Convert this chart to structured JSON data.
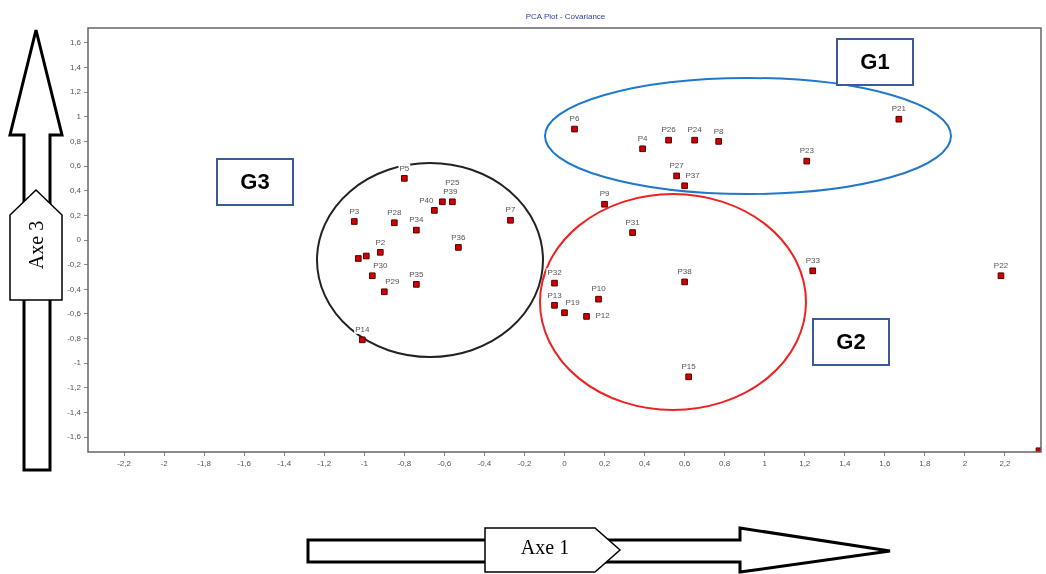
{
  "chart_data": {
    "type": "scatter",
    "title": "PCA Plot - Covariance",
    "xlabel": "Axe 1",
    "ylabel": "Axe 3",
    "marker": "square",
    "grid": false,
    "legend": false,
    "xlim": [
      -2.38,
      2.38
    ],
    "ylim": [
      -1.72,
      1.72
    ],
    "xticks": [
      {
        "value": -2.2,
        "label": "-2,2"
      },
      {
        "value": -2,
        "label": "-2"
      },
      {
        "value": -1.8,
        "label": "-1,8"
      },
      {
        "value": -1.6,
        "label": "-1,6"
      },
      {
        "value": -1.4,
        "label": "-1,4"
      },
      {
        "value": -1.2,
        "label": "-1,2"
      },
      {
        "value": -1,
        "label": "-1"
      },
      {
        "value": -0.8,
        "label": "-0,8"
      },
      {
        "value": -0.6,
        "label": "-0,6"
      },
      {
        "value": -0.4,
        "label": "-0,4"
      },
      {
        "value": -0.2,
        "label": "-0,2"
      },
      {
        "value": 0,
        "label": "0"
      },
      {
        "value": 0.2,
        "label": "0,2"
      },
      {
        "value": 0.4,
        "label": "0,4"
      },
      {
        "value": 0.6,
        "label": "0,6"
      },
      {
        "value": 0.8,
        "label": "0,8"
      },
      {
        "value": 1,
        "label": "1"
      },
      {
        "value": 1.2,
        "label": "1,2"
      },
      {
        "value": 1.4,
        "label": "1,4"
      },
      {
        "value": 1.6,
        "label": "1,6"
      },
      {
        "value": 1.8,
        "label": "1,8"
      },
      {
        "value": 2,
        "label": "2"
      },
      {
        "value": 2.2,
        "label": "2,2"
      }
    ],
    "yticks": [
      {
        "value": -1.6,
        "label": "-1,6"
      },
      {
        "value": -1.4,
        "label": "-1,4"
      },
      {
        "value": -1.2,
        "label": "-1,2"
      },
      {
        "value": -1,
        "label": "-1"
      },
      {
        "value": -0.8,
        "label": "-0,8"
      },
      {
        "value": -0.6,
        "label": "-0,6"
      },
      {
        "value": -0.4,
        "label": "-0,4"
      },
      {
        "value": -0.2,
        "label": "-0,2"
      },
      {
        "value": 0,
        "label": "0"
      },
      {
        "value": 0.2,
        "label": "0,2"
      },
      {
        "value": 0.4,
        "label": "0,4"
      },
      {
        "value": 0.6,
        "label": "0,6"
      },
      {
        "value": 0.8,
        "label": "0,8"
      },
      {
        "value": 1,
        "label": "1"
      },
      {
        "value": 1.2,
        "label": "1,2"
      },
      {
        "value": 1.4,
        "label": "1,4"
      },
      {
        "value": 1.6,
        "label": "1,6"
      }
    ],
    "series": [
      {
        "color": "#d00000",
        "x": [
          0.05,
          0.39,
          0.52,
          0.65,
          0.77,
          1.21,
          1.67,
          0.56,
          0.6,
          0.2,
          0.34,
          0.6,
          1.24,
          2.18,
          -0.05,
          -0.05,
          0.0,
          0.11,
          0.17,
          0.62,
          -1.05,
          -0.8,
          -0.85,
          -0.74,
          -0.65,
          -0.61,
          -0.56,
          -0.27,
          -0.53,
          -0.92,
          -1.03,
          -0.99,
          -0.96,
          -0.9,
          -0.74,
          -1.01,
          2.37
        ],
        "values": [
          0.9,
          0.74,
          0.81,
          0.81,
          0.8,
          0.64,
          0.98,
          0.52,
          0.44,
          0.29,
          0.06,
          -0.34,
          -0.25,
          -0.29,
          -0.35,
          -0.53,
          -0.59,
          -0.62,
          -0.48,
          -1.11,
          0.15,
          0.5,
          0.14,
          0.08,
          0.24,
          0.31,
          0.31,
          0.16,
          -0.06,
          -0.1,
          -0.15,
          -0.13,
          -0.29,
          -0.42,
          -0.36,
          -0.81,
          -1.71
        ]
      }
    ],
    "annotations": [
      {
        "text": "P6",
        "x": 0.05,
        "y": 0.9
      },
      {
        "text": "P4",
        "x": 0.39,
        "y": 0.74
      },
      {
        "text": "P26",
        "x": 0.52,
        "y": 0.81
      },
      {
        "text": "P24",
        "x": 0.65,
        "y": 0.81
      },
      {
        "text": "P8",
        "x": 0.77,
        "y": 0.8
      },
      {
        "text": "P23",
        "x": 1.21,
        "y": 0.64
      },
      {
        "text": "P21",
        "x": 1.67,
        "y": 0.98
      },
      {
        "text": "P27",
        "x": 0.56,
        "y": 0.52
      },
      {
        "text": "P37",
        "x": 0.6,
        "y": 0.44
      },
      {
        "text": "P9",
        "x": 0.2,
        "y": 0.29
      },
      {
        "text": "P31",
        "x": 0.34,
        "y": 0.06
      },
      {
        "text": "P38",
        "x": 0.6,
        "y": -0.34
      },
      {
        "text": "P33",
        "x": 1.24,
        "y": -0.25
      },
      {
        "text": "P22",
        "x": 2.18,
        "y": -0.29
      },
      {
        "text": "P32",
        "x": -0.05,
        "y": -0.35
      },
      {
        "text": "P13",
        "x": -0.05,
        "y": -0.53
      },
      {
        "text": "P19",
        "x": 0.0,
        "y": -0.59
      },
      {
        "text": "P12",
        "x": 0.11,
        "y": -0.62
      },
      {
        "text": "P10",
        "x": 0.17,
        "y": -0.48
      },
      {
        "text": "P15",
        "x": 0.62,
        "y": -1.11
      },
      {
        "text": "P3",
        "x": -1.05,
        "y": 0.15
      },
      {
        "text": "P5",
        "x": -0.8,
        "y": 0.5
      },
      {
        "text": "P28",
        "x": -0.85,
        "y": 0.14
      },
      {
        "text": "P34",
        "x": -0.74,
        "y": 0.08
      },
      {
        "text": "P40",
        "x": -0.65,
        "y": 0.24
      },
      {
        "text": "P39",
        "x": -0.61,
        "y": 0.31
      },
      {
        "text": "P25",
        "x": -0.56,
        "y": 0.31
      },
      {
        "text": "P7",
        "x": -0.27,
        "y": 0.16
      },
      {
        "text": "P36",
        "x": -0.53,
        "y": -0.06
      },
      {
        "text": "P2",
        "x": -0.92,
        "y": -0.1
      },
      {
        "text": "P30",
        "x": -0.96,
        "y": -0.29
      },
      {
        "text": "P29",
        "x": -0.9,
        "y": -0.42
      },
      {
        "text": "P35",
        "x": -0.74,
        "y": -0.36
      },
      {
        "text": "P14",
        "x": -1.01,
        "y": -0.81
      },
      "G1",
      "G2",
      "G3"
    ]
  }
}
